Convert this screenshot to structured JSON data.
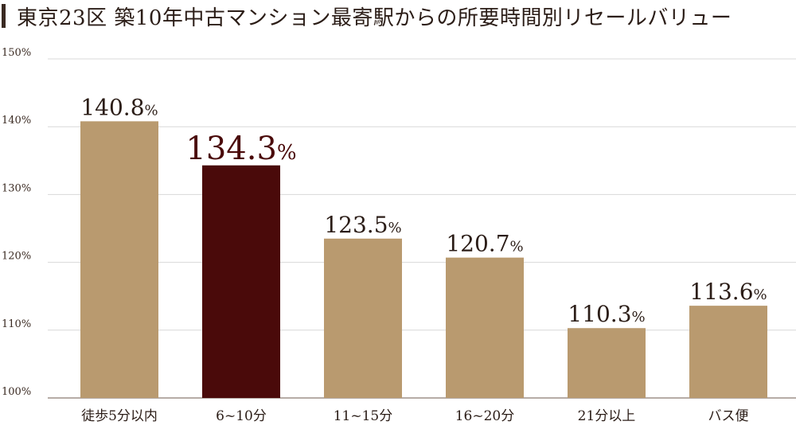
{
  "title": "東京23区 築10年中古マンション最寄駅からの所要時間別リセールバリュー",
  "colors": {
    "bar": "#b99a6f",
    "highlight": "#4a0a0a",
    "grid": "#d8d8d8",
    "axis": "#8a7a70"
  },
  "chart_data": {
    "type": "bar",
    "categories": [
      "徒歩5分以内",
      "6~10分",
      "11~15分",
      "16~20分",
      "21分以上",
      "バス便"
    ],
    "values": [
      140.8,
      134.3,
      123.5,
      120.7,
      110.3,
      113.6
    ],
    "value_labels": [
      "140.8",
      "134.3",
      "123.5",
      "120.7",
      "110.3",
      "113.6"
    ],
    "value_suffix": "%",
    "highlight_index": 1,
    "ylim": [
      100,
      150
    ],
    "yticks": [
      100,
      110,
      120,
      130,
      140,
      150
    ],
    "ytick_labels": [
      "100%",
      "110%",
      "120%",
      "130%",
      "140%",
      "150%"
    ],
    "grid": true,
    "xlabel": "",
    "ylabel": ""
  }
}
